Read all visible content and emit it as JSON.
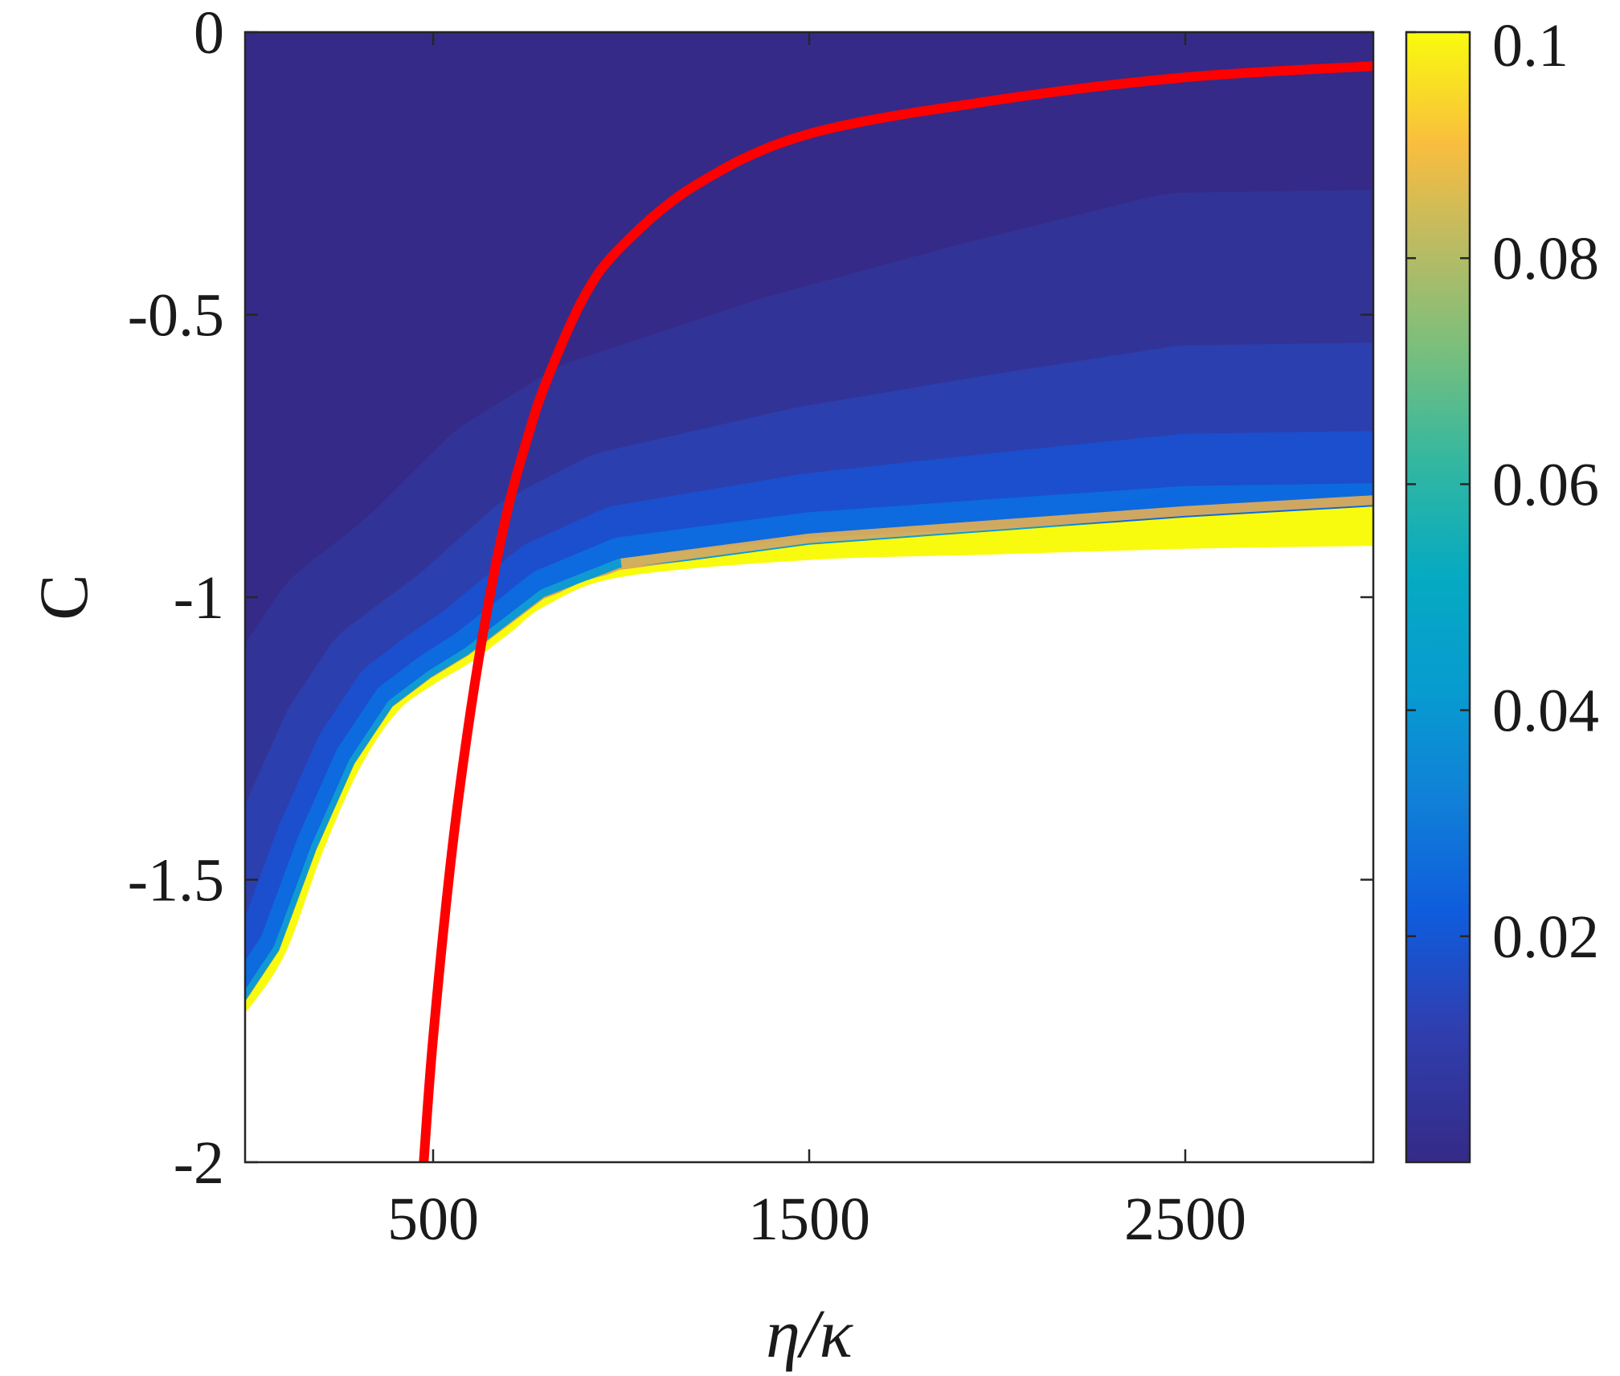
{
  "chart_data": {
    "type": "heatmap",
    "xlabel": "η/κ",
    "ylabel": "C",
    "xlim": [
      0,
      3000
    ],
    "ylim": [
      -2,
      0
    ],
    "x_ticks": [
      500,
      1500,
      2500
    ],
    "x_tick_labels": [
      "500",
      "1500",
      "2500"
    ],
    "y_ticks": [
      0,
      -0.5,
      -1,
      -1.5,
      -2
    ],
    "y_tick_labels": [
      "0",
      "-0.5",
      "-1",
      "-1.5",
      "-2"
    ],
    "colorbar": {
      "range": [
        0,
        0.1
      ],
      "ticks": [
        0.02,
        0.04,
        0.06,
        0.08,
        0.1
      ],
      "tick_labels": [
        "0.02",
        "0.04",
        "0.06",
        "0.08",
        "0.1"
      ],
      "colormap": "parula"
    },
    "boundary": {
      "x": [
        0,
        100,
        200,
        300,
        400,
        500,
        600,
        700,
        800,
        1000,
        1500,
        2000,
        2500,
        3000
      ],
      "y": [
        -1.73,
        -1.63,
        -1.45,
        -1.3,
        -1.2,
        -1.15,
        -1.11,
        -1.06,
        -1.01,
        -0.96,
        -0.93,
        -0.92,
        -0.91,
        -0.905
      ]
    },
    "series": [
      {
        "color": "#ff0000",
        "x": [
          475,
          500,
          550,
          600,
          650,
          700,
          750,
          800,
          900,
          1000,
          1200,
          1500,
          2000,
          2500,
          3000
        ],
        "y": [
          -2.0,
          -1.78,
          -1.45,
          -1.2,
          -1.0,
          -0.84,
          -0.72,
          -0.62,
          -0.47,
          -0.38,
          -0.27,
          -0.18,
          -0.12,
          -0.08,
          -0.06
        ]
      }
    ],
    "grid": false
  }
}
